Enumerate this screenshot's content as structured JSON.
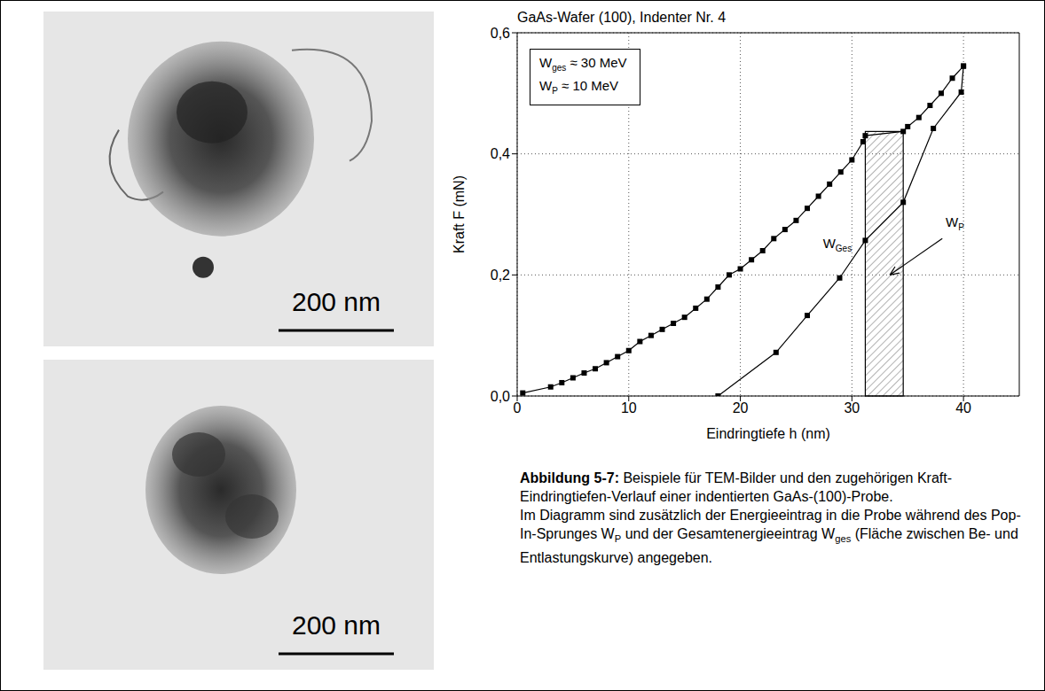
{
  "images": [
    {
      "scale_bar": "200 nm"
    },
    {
      "scale_bar": "200 nm"
    }
  ],
  "chart_data": {
    "type": "line",
    "title": "GaAs-Wafer (100), Indenter Nr. 4",
    "x_label": "Eindringtiefe h (nm)",
    "y_label": "Kraft F (mN)",
    "xlim": [
      0,
      45
    ],
    "xticks": [
      0,
      10,
      20,
      30,
      40
    ],
    "ylim": [
      0,
      0.6
    ],
    "yticks": [
      {
        "value": 0,
        "label": "0,0"
      },
      {
        "value": 0.2,
        "label": "0,2"
      },
      {
        "value": 0.4,
        "label": "0,4"
      },
      {
        "value": 0.6,
        "label": "0,6"
      }
    ],
    "grid": true,
    "series": [
      {
        "color": "#000000",
        "marker": "square",
        "line_style": "solid",
        "x": [
          0.5,
          3,
          4,
          5,
          6,
          7,
          8,
          9,
          10,
          11,
          12,
          13,
          14,
          15,
          16,
          17,
          18,
          19,
          20,
          21,
          22,
          23,
          24,
          25,
          26,
          27,
          28,
          29,
          30,
          31,
          31.2,
          34.6,
          35,
          36,
          37,
          38,
          39,
          40
        ],
        "values": [
          0.005,
          0.015,
          0.022,
          0.03,
          0.038,
          0.045,
          0.055,
          0.065,
          0.075,
          0.09,
          0.1,
          0.11,
          0.12,
          0.13,
          0.145,
          0.16,
          0.18,
          0.2,
          0.21,
          0.225,
          0.24,
          0.26,
          0.275,
          0.29,
          0.31,
          0.33,
          0.35,
          0.37,
          0.39,
          0.42,
          0.43,
          0.437,
          0.445,
          0.46,
          0.48,
          0.5,
          0.525,
          0.545
        ]
      },
      {
        "color": "#000000",
        "marker": "square",
        "line_style": "solid",
        "x": [
          40,
          39.8,
          37.3,
          34.6,
          31.2,
          28.9,
          26,
          23.2,
          18
        ],
        "values": [
          0.545,
          0.502,
          0.442,
          0.32,
          0.257,
          0.195,
          0.133,
          0.072,
          0
        ]
      }
    ],
    "energy_box": [
      {
        "name": "W",
        "sub": "ges",
        "relation": "≈",
        "value": 30,
        "unit": "MeV"
      },
      {
        "name": "W",
        "sub": "P",
        "relation": "≈",
        "value": 10,
        "unit": "MeV"
      }
    ],
    "pop_in": {
      "x_start": 31.2,
      "x_end": 34.6,
      "force": 0.437
    },
    "annotations": [
      {
        "text": "W",
        "sub": "Ges",
        "x": 27.4,
        "y": 0.245
      },
      {
        "text": "W",
        "sub": "P",
        "x": 38.4,
        "y": 0.28,
        "arrow_to": {
          "x": 33.4,
          "y": 0.2
        }
      }
    ]
  },
  "caption": {
    "label": "Abbildung 5-7:",
    "paragraphs": [
      [
        "Beispiele für TEM-Bilder und den zugehörigen Kraft-Eindringtiefen-Verlauf einer indentierten GaAs-(100)-Probe."
      ],
      [
        "Im Diagramm sind zusätzlich der Energieeintrag in die Probe während des Pop-In-Sprunges W",
        {
          "sub": "P"
        },
        " und der Gesamtenergieeintrag W",
        {
          "sub": "ges"
        },
        " (Fläche zwischen Be- und Entlastungskurve) angegeben."
      ]
    ]
  }
}
